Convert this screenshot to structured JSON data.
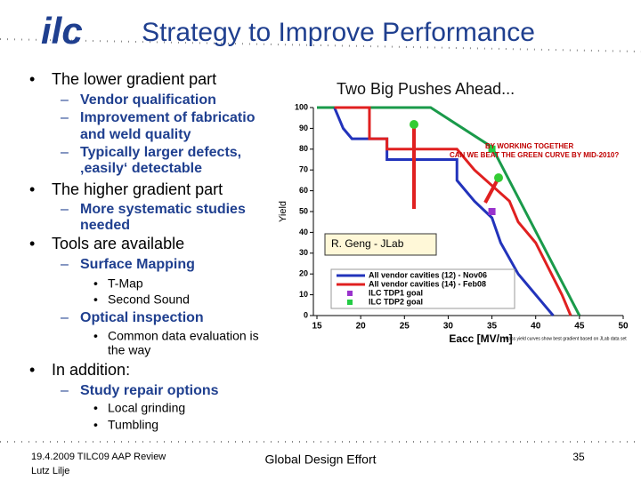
{
  "logo": "ilc",
  "header": {
    "title": "Strategy to Improve Performance"
  },
  "bullets": [
    {
      "lines": [
        "The lower gradient part"
      ],
      "children": [
        {
          "lines": [
            "Vendor qualification"
          ]
        },
        {
          "lines": [
            "Improvement of fabricatio",
            "and weld quality"
          ]
        },
        {
          "lines": [
            "Typically larger defects,",
            "‚easily‘ detectable"
          ]
        }
      ]
    },
    {
      "lines": [
        "The higher gradient part"
      ],
      "children": [
        {
          "lines": [
            "More systematic studies",
            "needed"
          ]
        }
      ]
    },
    {
      "lines": [
        "Tools are available"
      ],
      "children": [
        {
          "lines": [
            "Surface Mapping"
          ],
          "children": [
            {
              "lines": [
                "T-Map"
              ]
            },
            {
              "lines": [
                "Second Sound"
              ]
            }
          ]
        },
        {
          "lines": [
            "Optical inspection"
          ],
          "children": [
            {
              "lines": [
                "Common data evaluation is",
                "the way"
              ]
            }
          ]
        }
      ]
    },
    {
      "lines": [
        "In addition:"
      ],
      "children": [
        {
          "lines": [
            "Study repair options"
          ],
          "children": [
            {
              "lines": [
                "Local grinding"
              ]
            },
            {
              "lines": [
                "Tumbling"
              ]
            }
          ]
        }
      ]
    }
  ],
  "chart_data": {
    "type": "line",
    "title": "Two Big Pushes Ahead...",
    "y_label": "Yield",
    "x_label": "Eacc [MV/m]",
    "xlim": [
      15,
      50
    ],
    "xticks": [
      15,
      20,
      25,
      30,
      35,
      40,
      45,
      50
    ],
    "ylim": [
      0,
      100
    ],
    "yticks": [
      0,
      10,
      20,
      30,
      40,
      50,
      60,
      70,
      80,
      90,
      100
    ],
    "series": [
      {
        "color": "#1a9a4a",
        "x": [
          15,
          28,
          35,
          45
        ],
        "values": [
          100,
          100,
          81,
          0
        ]
      },
      {
        "name": "All vendor cavities (12) - Nov06",
        "color": "#2233bb",
        "x": [
          17,
          18,
          19,
          23,
          23,
          31,
          31,
          33,
          35,
          36,
          38,
          39,
          41,
          42
        ],
        "values": [
          100,
          90,
          85,
          85,
          75,
          75,
          65,
          55,
          47,
          35,
          20,
          15,
          5,
          0
        ]
      },
      {
        "name": "All vendor cavities (14) - Feb08",
        "color": "#e02020",
        "x": [
          17,
          21,
          21,
          23,
          23,
          31,
          33,
          37,
          38,
          40,
          43,
          44
        ],
        "values": [
          100,
          100,
          85,
          85,
          80,
          80,
          70,
          55,
          45,
          35,
          10,
          0
        ]
      }
    ],
    "points": [
      {
        "name": "ILC TDP1 goal",
        "color": "#9933cc",
        "x": 35,
        "y": 50
      },
      {
        "name": "ILC TDP2 goal",
        "color": "#22cc44",
        "x": 35,
        "y": 80
      }
    ],
    "annotations": [
      "BY WORKING TOGETHER",
      "CAN WE BEAT THE GREEN CURVE BY MID-2010?",
      "R. Geng - JLab",
      "Pass yield curves show best gradient based on JLab data set"
    ]
  },
  "footer": {
    "date": "19.4.2009 TILC09 AAP Review",
    "author": "Lutz Lilje",
    "center": "Global Design Effort",
    "page": "35"
  }
}
